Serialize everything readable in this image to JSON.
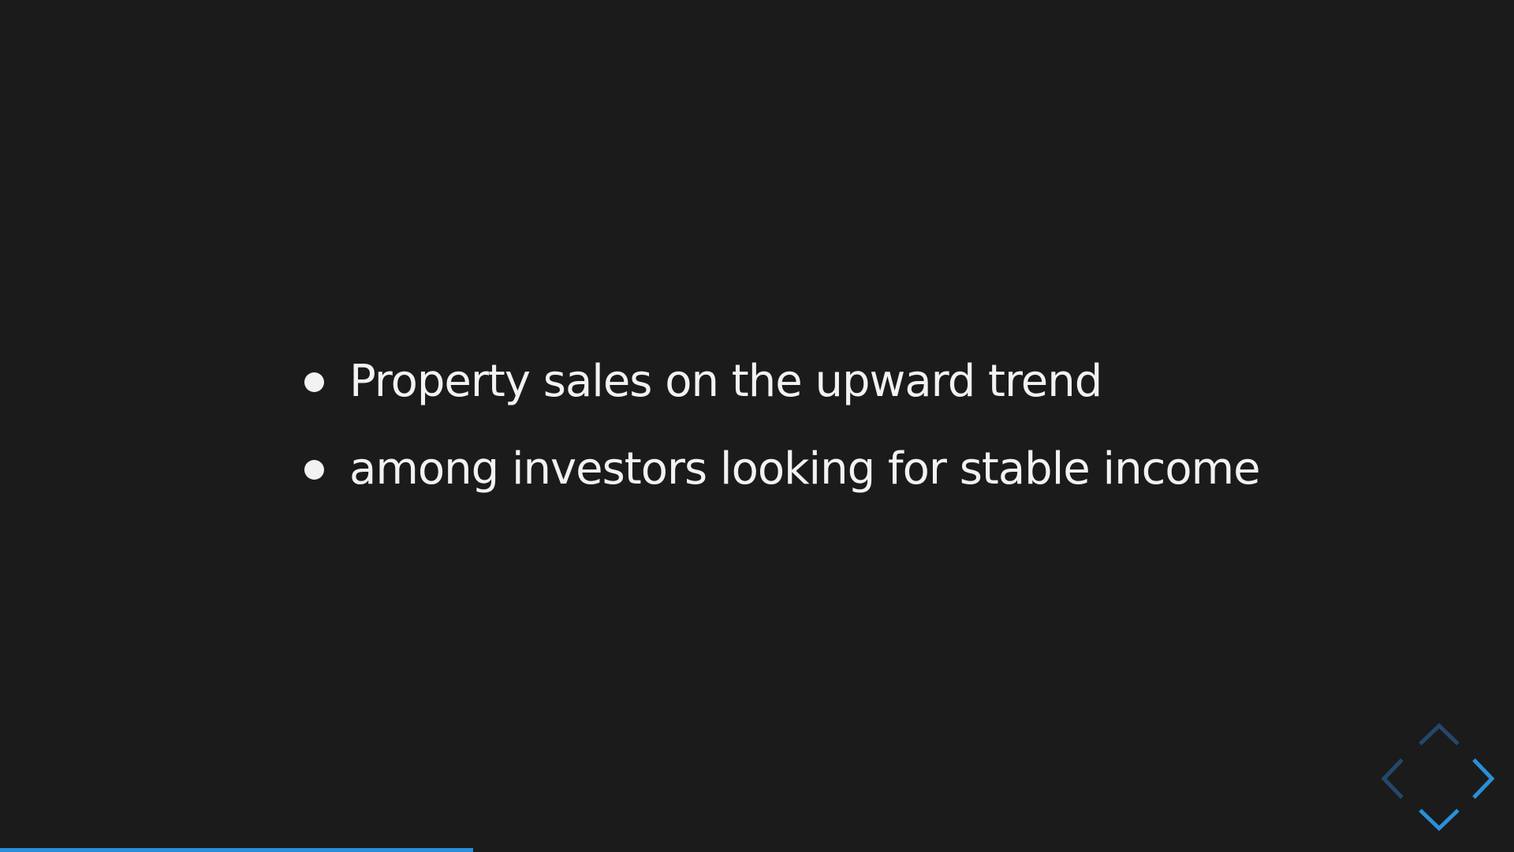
{
  "slide": {
    "bullets": [
      "Property sales on the upward trend",
      "among investors looking for stable income"
    ]
  },
  "controls": {
    "up": {
      "icon": "chevron-up-icon",
      "enabled": false
    },
    "left": {
      "icon": "chevron-left-icon",
      "enabled": false
    },
    "right": {
      "icon": "chevron-right-icon",
      "enabled": true
    },
    "down": {
      "icon": "chevron-down-icon",
      "enabled": true
    }
  },
  "progress": {
    "fraction": 0.3125
  },
  "colors": {
    "background": "#1b1b1b",
    "text": "#f2f2f2",
    "accent": "#2a8fd8",
    "accent_dim": "#24486a"
  }
}
